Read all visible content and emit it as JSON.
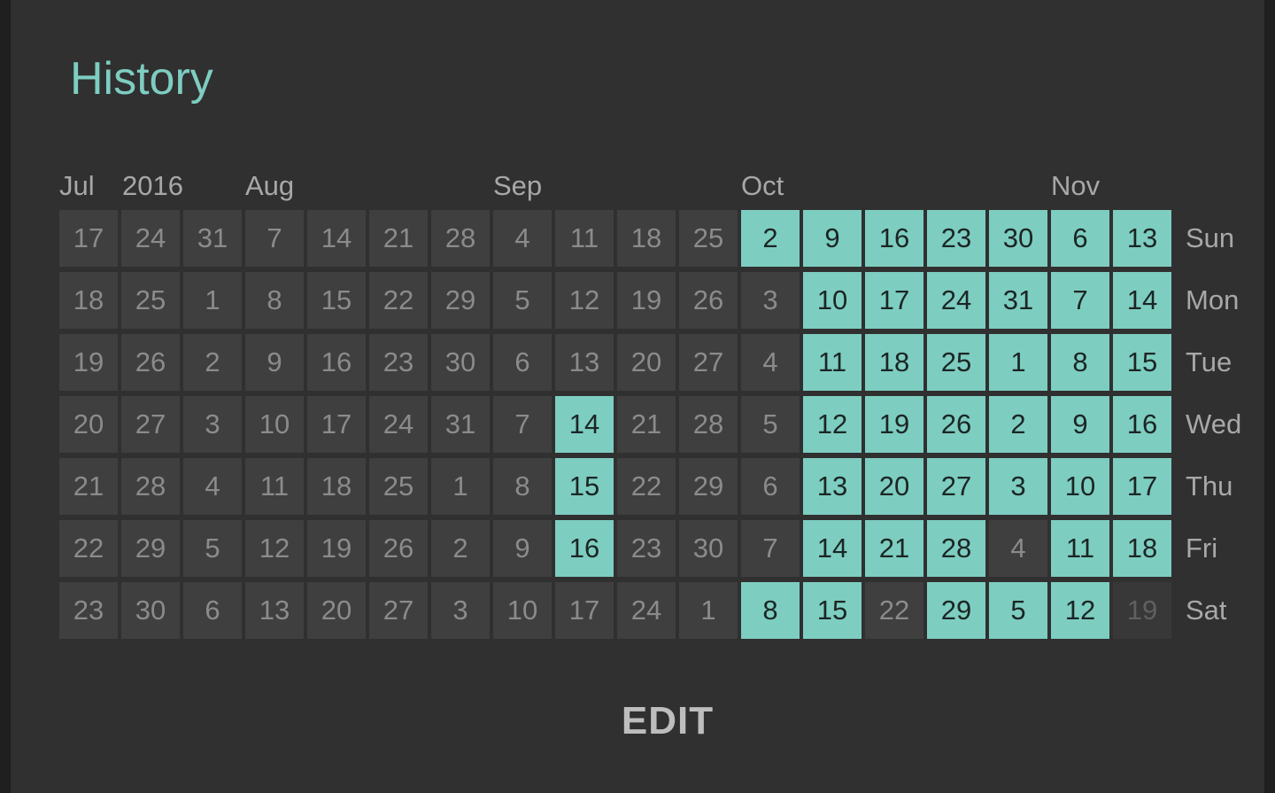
{
  "header": {
    "title": "History"
  },
  "months": [
    {
      "label": "Jul",
      "col": 0
    },
    {
      "label": "2016",
      "col": 1
    },
    {
      "label": "Aug",
      "col": 3
    },
    {
      "label": "Sep",
      "col": 7
    },
    {
      "label": "Oct",
      "col": 11
    },
    {
      "label": "Nov",
      "col": 16
    }
  ],
  "days": [
    "Sun",
    "Mon",
    "Tue",
    "Wed",
    "Thu",
    "Fri",
    "Sat"
  ],
  "weeks": [
    [
      17,
      18,
      19,
      20,
      21,
      22,
      23
    ],
    [
      24,
      25,
      26,
      27,
      28,
      29,
      30
    ],
    [
      31,
      1,
      2,
      3,
      4,
      5,
      6
    ],
    [
      7,
      8,
      9,
      10,
      11,
      12,
      13
    ],
    [
      14,
      15,
      16,
      17,
      18,
      19,
      20
    ],
    [
      21,
      22,
      23,
      24,
      25,
      26,
      27
    ],
    [
      28,
      29,
      30,
      31,
      1,
      2,
      3
    ],
    [
      4,
      5,
      6,
      7,
      8,
      9,
      10
    ],
    [
      11,
      12,
      13,
      14,
      15,
      16,
      17
    ],
    [
      18,
      19,
      20,
      21,
      22,
      23,
      24
    ],
    [
      25,
      26,
      27,
      28,
      29,
      30,
      1
    ],
    [
      2,
      3,
      4,
      5,
      6,
      7,
      8
    ],
    [
      9,
      10,
      11,
      12,
      13,
      14,
      15
    ],
    [
      16,
      17,
      18,
      19,
      20,
      21,
      22
    ],
    [
      23,
      24,
      25,
      26,
      27,
      28,
      29
    ],
    [
      30,
      31,
      1,
      2,
      3,
      4,
      5
    ],
    [
      6,
      7,
      8,
      9,
      10,
      11,
      12
    ],
    [
      13,
      14,
      15,
      16,
      17,
      18,
      19
    ]
  ],
  "checked": [
    [
      8,
      3
    ],
    [
      8,
      4
    ],
    [
      8,
      5
    ],
    [
      11,
      0
    ],
    [
      11,
      6
    ],
    [
      12,
      0
    ],
    [
      12,
      1
    ],
    [
      12,
      2
    ],
    [
      12,
      3
    ],
    [
      12,
      4
    ],
    [
      12,
      5
    ],
    [
      12,
      6
    ],
    [
      13,
      0
    ],
    [
      13,
      1
    ],
    [
      13,
      2
    ],
    [
      13,
      3
    ],
    [
      13,
      4
    ],
    [
      13,
      5
    ],
    [
      14,
      0
    ],
    [
      14,
      1
    ],
    [
      14,
      2
    ],
    [
      14,
      3
    ],
    [
      14,
      4
    ],
    [
      14,
      5
    ],
    [
      14,
      6
    ],
    [
      15,
      0
    ],
    [
      15,
      1
    ],
    [
      15,
      2
    ],
    [
      15,
      3
    ],
    [
      15,
      4
    ],
    [
      15,
      6
    ],
    [
      16,
      0
    ],
    [
      16,
      1
    ],
    [
      16,
      2
    ],
    [
      16,
      3
    ],
    [
      16,
      4
    ],
    [
      16,
      5
    ],
    [
      16,
      6
    ],
    [
      17,
      0
    ],
    [
      17,
      1
    ],
    [
      17,
      2
    ],
    [
      17,
      3
    ],
    [
      17,
      4
    ],
    [
      17,
      5
    ]
  ],
  "future": [
    [
      17,
      6
    ]
  ],
  "footer": {
    "edit_label": "EDIT"
  },
  "colors": {
    "accent": "#7ecdc1",
    "background": "#303030",
    "cell": "#3f3f3f",
    "cell_text": "#8b8b8b"
  }
}
